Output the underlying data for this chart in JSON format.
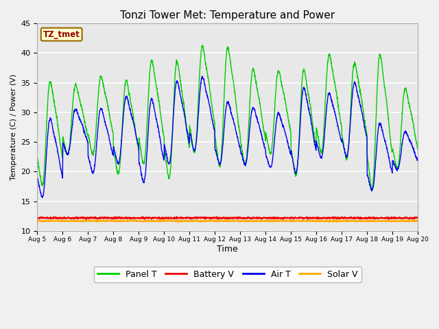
{
  "title": "Tonzi Tower Met: Temperature and Power",
  "ylabel": "Temperature (C) / Power (V)",
  "xlabel": "Time",
  "tag_label": "TZ_tmet",
  "ylim": [
    10,
    45
  ],
  "xlim": [
    0,
    15
  ],
  "background_color": "#e8e8e8",
  "figure_color": "#f0f0f0",
  "grid_color": "#ffffff",
  "xtick_labels": [
    "Aug 5",
    "Aug 6",
    "Aug 7",
    "Aug 8",
    "Aug 9",
    "Aug 10",
    "Aug 11",
    "Aug 12",
    "Aug 13",
    "Aug 14",
    "Aug 15",
    "Aug 16",
    "Aug 17",
    "Aug 18",
    "Aug 19",
    "Aug 20"
  ],
  "legend_entries": [
    "Panel T",
    "Battery V",
    "Air T",
    "Solar V"
  ],
  "panel_t_color": "#00cc00",
  "battery_v_color": "#ee0000",
  "air_t_color": "#0000ee",
  "solar_v_color": "#ffaa00",
  "battery_v_value": 12.2,
  "solar_v_value": 11.7,
  "n_points": 2000,
  "p_peaks": [
    36.5,
    35.5,
    37.0,
    36.5,
    40.0,
    40.0,
    42.5,
    42.5,
    38.5,
    38.0,
    38.5,
    41.0,
    39.5,
    41.5,
    35.0
  ],
  "p_troughs": [
    16.5,
    22.0,
    22.0,
    18.5,
    20.0,
    17.5,
    22.0,
    19.5,
    20.0,
    22.0,
    18.0,
    22.0,
    21.0,
    15.5,
    19.5
  ],
  "a_peaks": [
    30.5,
    31.5,
    32.0,
    34.0,
    34.0,
    37.0,
    37.5,
    33.0,
    32.0,
    31.0,
    36.0,
    34.5,
    36.5,
    29.5,
    27.5
  ],
  "a_troughs": [
    14.0,
    22.0,
    18.5,
    20.0,
    16.5,
    19.5,
    22.0,
    20.0,
    20.0,
    19.5,
    18.0,
    21.0,
    21.0,
    15.5,
    19.5
  ]
}
